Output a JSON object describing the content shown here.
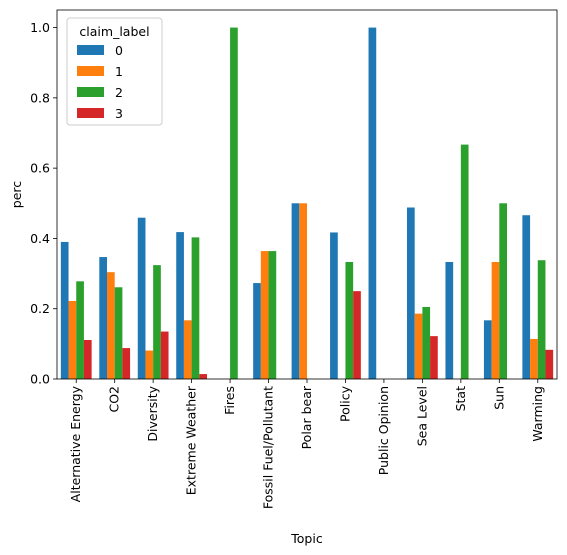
{
  "chart_data": {
    "type": "bar",
    "xlabel": "Topic",
    "ylabel": "perc",
    "ylim": [
      0,
      1.05
    ],
    "yticks": [
      "0.0",
      "0.2",
      "0.4",
      "0.6",
      "0.8",
      "1.0"
    ],
    "ytick_values": [
      0,
      0.2,
      0.4,
      0.6,
      0.8,
      1.0
    ],
    "legend_title": "claim_label",
    "legend_placement": "top-left",
    "grid": false,
    "categories": [
      "Alternative Energy",
      "CO2",
      "Diversity",
      "Extreme Weather",
      "Fires",
      "Fossil Fuel/Pollutant",
      "Polar bear",
      "Policy",
      "Public Opinion",
      "Sea Level",
      "Stat",
      "Sun",
      "Warming"
    ],
    "series": [
      {
        "name": "0",
        "color": "#1f77b4",
        "values": [
          0.39,
          0.347,
          0.459,
          0.418,
          0.0,
          0.273,
          0.5,
          0.417,
          1.0,
          0.488,
          0.333,
          0.167,
          0.466
        ]
      },
      {
        "name": "1",
        "color": "#ff7f0e",
        "values": [
          0.222,
          0.304,
          0.081,
          0.167,
          0.0,
          0.364,
          0.5,
          0.0,
          0.0,
          0.186,
          0.0,
          0.333,
          0.114
        ]
      },
      {
        "name": "2",
        "color": "#2ca02c",
        "values": [
          0.278,
          0.261,
          0.324,
          0.403,
          1.0,
          0.364,
          0.0,
          0.333,
          0.0,
          0.205,
          0.667,
          0.5,
          0.338
        ]
      },
      {
        "name": "3",
        "color": "#d62728",
        "values": [
          0.111,
          0.088,
          0.135,
          0.014,
          0.0,
          0.0,
          0.0,
          0.25,
          0.0,
          0.122,
          0.0,
          0.0,
          0.083
        ]
      }
    ]
  }
}
